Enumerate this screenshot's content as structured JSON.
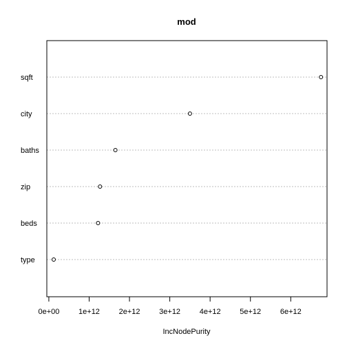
{
  "chart_data": {
    "type": "scatter",
    "title": "mod",
    "xlabel": "IncNodePurity",
    "ylabel": "",
    "categories": [
      "sqft",
      "city",
      "baths",
      "zip",
      "beds",
      "type"
    ],
    "values": [
      6750000000000.0,
      3500000000000.0,
      1650000000000.0,
      1270000000000.0,
      1220000000000.0,
      120000000000.0
    ],
    "xlim": [
      -50000000000.0,
      6900000000000.0
    ],
    "x_ticks": [
      0,
      1000000000000.0,
      2000000000000.0,
      3000000000000.0,
      4000000000000.0,
      5000000000000.0,
      6000000000000.0
    ],
    "x_tick_labels": [
      "0e+00",
      "1e+12",
      "2e+12",
      "3e+12",
      "4e+12",
      "5e+12",
      "6e+12"
    ],
    "grid": "dotted horizontal lines per category",
    "colors": {
      "marker": "#000000",
      "grid": "#bebebe",
      "frame": "#000000"
    }
  }
}
